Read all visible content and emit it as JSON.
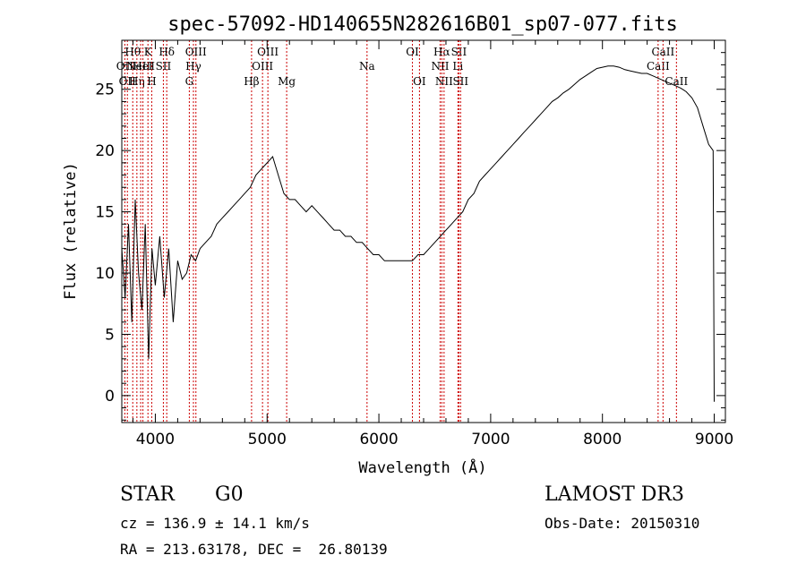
{
  "chart_data": {
    "type": "line",
    "title": "spec-57092-HD140655N282616B01_sp07-077.fits",
    "xlabel": "Wavelength (Å)",
    "ylabel": "Flux (relative)",
    "xlim": [
      3700,
      9100
    ],
    "ylim": [
      -2.2,
      29
    ],
    "x_ticks": [
      4000,
      5000,
      6000,
      7000,
      8000,
      9000
    ],
    "y_ticks": [
      0,
      5,
      10,
      15,
      20,
      25
    ],
    "grid": false,
    "legend": "none",
    "colors": {
      "spectrum": "#000000",
      "line_markers": "#cc0000"
    },
    "series": [
      {
        "x": [
          3700,
          3730,
          3760,
          3790,
          3820,
          3850,
          3880,
          3910,
          3940,
          3970,
          4000,
          4040,
          4080,
          4120,
          4160,
          4200,
          4240,
          4280,
          4320,
          4360,
          4400,
          4450,
          4500,
          4550,
          4600,
          4650,
          4700,
          4750,
          4800,
          4850,
          4900,
          4950,
          5000,
          5050,
          5100,
          5150,
          5200,
          5250,
          5300,
          5350,
          5400,
          5450,
          5500,
          5550,
          5600,
          5650,
          5700,
          5750,
          5800,
          5850,
          5900,
          5950,
          6000,
          6050,
          6100,
          6150,
          6200,
          6250,
          6300,
          6350,
          6400,
          6450,
          6500,
          6550,
          6600,
          6650,
          6700,
          6750,
          6800,
          6850,
          6900,
          6950,
          7000,
          7050,
          7100,
          7150,
          7200,
          7250,
          7300,
          7350,
          7400,
          7450,
          7500,
          7550,
          7600,
          7650,
          7700,
          7750,
          7800,
          7850,
          7900,
          7950,
          8000,
          8050,
          8100,
          8150,
          8200,
          8250,
          8300,
          8350,
          8400,
          8450,
          8500,
          8550,
          8600,
          8650,
          8700,
          8750,
          8800,
          8850,
          8900,
          8950,
          8990,
          9000
        ],
        "values": [
          12.0,
          8.0,
          14.0,
          6.0,
          16.0,
          10.0,
          7.0,
          14.0,
          3.0,
          12.0,
          9.0,
          13.0,
          8.0,
          12.0,
          6.0,
          11.0,
          9.5,
          10.0,
          11.5,
          11.0,
          12.0,
          12.5,
          13.0,
          14.0,
          14.5,
          15.0,
          15.5,
          16.0,
          16.5,
          17.0,
          18.0,
          18.5,
          19.0,
          19.5,
          18.0,
          16.5,
          16.0,
          16.0,
          15.5,
          15.0,
          15.5,
          15.0,
          14.5,
          14.0,
          13.5,
          13.5,
          13.0,
          13.0,
          12.5,
          12.5,
          12.0,
          11.5,
          11.5,
          11.0,
          11.0,
          11.0,
          11.0,
          11.0,
          11.0,
          11.5,
          11.5,
          12.0,
          12.5,
          13.0,
          13.5,
          14.0,
          14.5,
          15.0,
          16.0,
          16.5,
          17.5,
          18.0,
          18.5,
          19.0,
          19.5,
          20.0,
          20.5,
          21.0,
          21.5,
          22.0,
          22.5,
          23.0,
          23.5,
          24.0,
          24.3,
          24.7,
          25.0,
          25.4,
          25.8,
          26.1,
          26.4,
          26.7,
          26.8,
          26.9,
          26.9,
          26.8,
          26.6,
          26.5,
          26.4,
          26.3,
          26.3,
          26.1,
          25.9,
          25.7,
          25.5,
          25.3,
          25.1,
          24.8,
          24.3,
          23.5,
          22.0,
          20.5,
          20.0,
          -0.5
        ]
      }
    ],
    "line_markers": [
      {
        "x": 3727,
        "label": "OII",
        "row": 2
      },
      {
        "x": 3750,
        "label": "OII",
        "row": 3
      },
      {
        "x": 3798,
        "label": "Hθ",
        "row": 1
      },
      {
        "x": 3835,
        "label": "Hη",
        "row": 3
      },
      {
        "x": 3869,
        "label": "NeIII",
        "row": 2
      },
      {
        "x": 3889,
        "label": "HeI",
        "row": 2
      },
      {
        "x": 3934,
        "label": "K",
        "row": 1
      },
      {
        "x": 3968,
        "label": "H",
        "row": 3
      },
      {
        "x": 4072,
        "label": "SII",
        "row": 2
      },
      {
        "x": 4102,
        "label": "Hδ",
        "row": 1
      },
      {
        "x": 4304,
        "label": "G",
        "row": 3
      },
      {
        "x": 4341,
        "label": "Hγ",
        "row": 2
      },
      {
        "x": 4363,
        "label": "OIII",
        "row": 1
      },
      {
        "x": 4861,
        "label": "Hβ",
        "row": 3
      },
      {
        "x": 4959,
        "label": "OIII",
        "row": 2
      },
      {
        "x": 5007,
        "label": "OIII",
        "row": 1
      },
      {
        "x": 5175,
        "label": "Mg",
        "row": 3
      },
      {
        "x": 5894,
        "label": "Na",
        "row": 2
      },
      {
        "x": 6300,
        "label": "OI",
        "row": 1
      },
      {
        "x": 6363,
        "label": "OI",
        "row": 3
      },
      {
        "x": 6548,
        "label": "NII",
        "row": 2
      },
      {
        "x": 6563,
        "label": "Hα",
        "row": 1
      },
      {
        "x": 6583,
        "label": "NII",
        "row": 3
      },
      {
        "x": 6707,
        "label": "Li",
        "row": 2
      },
      {
        "x": 6716,
        "label": "SII",
        "row": 1
      },
      {
        "x": 6731,
        "label": "SII",
        "row": 3
      },
      {
        "x": 8498,
        "label": "CaII",
        "row": 2
      },
      {
        "x": 8542,
        "label": "CaII",
        "row": 1
      },
      {
        "x": 8662,
        "label": "CaII",
        "row": 3
      }
    ]
  },
  "info": {
    "class": "STAR",
    "subclass": "G0",
    "survey": "LAMOST DR3",
    "redshift": "cz = 136.9 ± 14.1 km/s",
    "obs_date": "Obs-Date: 20150310",
    "coords": "RA = 213.63178, DEC =  26.80139"
  }
}
